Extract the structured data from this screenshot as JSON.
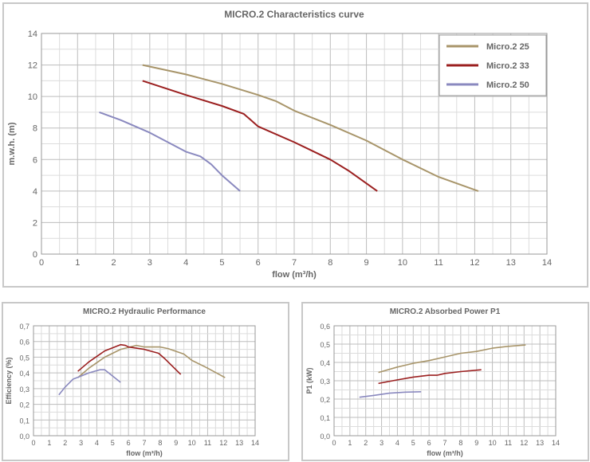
{
  "colors": {
    "Micro.2 25": "#a8956a",
    "Micro.2 33": "#9b1f1f",
    "Micro.2 50": "#8a89bf"
  },
  "chart_data": [
    {
      "type": "line",
      "title": "MICRO.2 Characteristics curve",
      "xlabel": "flow (m³/h)",
      "ylabel": "m.w.h. (m)",
      "xlim": [
        0,
        14
      ],
      "ylim": [
        0,
        14
      ],
      "xticks": [
        "0",
        "1",
        "2",
        "3",
        "4",
        "5",
        "6",
        "7",
        "8",
        "9",
        "10",
        "11",
        "12",
        "13",
        "14"
      ],
      "yticks": [
        "0",
        "2",
        "4",
        "6",
        "8",
        "10",
        "12",
        "14"
      ],
      "legend": "top-right",
      "grid": true,
      "series": [
        {
          "name": "Micro.2 25",
          "x": [
            2.8,
            4,
            5,
            6,
            6.5,
            7,
            8,
            9,
            10,
            11,
            12.1
          ],
          "y": [
            12,
            11.4,
            10.8,
            10.1,
            9.7,
            9.1,
            8.2,
            7.2,
            6,
            4.9,
            4
          ]
        },
        {
          "name": "Micro.2 33",
          "x": [
            2.8,
            4,
            5,
            5.6,
            5.8,
            6,
            7,
            8,
            8.5,
            9.3
          ],
          "y": [
            11,
            10.1,
            9.4,
            8.9,
            8.5,
            8.1,
            7.1,
            6,
            5.3,
            4
          ]
        },
        {
          "name": "Micro.2 50",
          "x": [
            1.6,
            2.2,
            3,
            3.5,
            4,
            4.4,
            4.7,
            5,
            5.5
          ],
          "y": [
            9,
            8.5,
            7.7,
            7.1,
            6.5,
            6.2,
            5.7,
            5,
            4
          ]
        }
      ]
    },
    {
      "type": "line",
      "title": "MICRO.2 Hydraulic Performance",
      "xlabel": "flow (m³/h)",
      "ylabel": "Efficiency (%)",
      "xlim": [
        0,
        14
      ],
      "ylim": [
        0,
        0.7
      ],
      "xticks": [
        "0",
        "1",
        "2",
        "3",
        "4",
        "5",
        "6",
        "7",
        "8",
        "9",
        "10",
        "11",
        "12",
        "13",
        "14"
      ],
      "yticks": [
        "0,0",
        "0,1",
        "0,2",
        "0,3",
        "0,4",
        "0,5",
        "0,6",
        "0,7"
      ],
      "grid": true,
      "series": [
        {
          "name": "Micro.2 25",
          "x": [
            2.8,
            3.5,
            4.5,
            5.5,
            6.5,
            7,
            8,
            8.5,
            9.5,
            10,
            11,
            12.1
          ],
          "y": [
            0.37,
            0.43,
            0.5,
            0.55,
            0.575,
            0.565,
            0.565,
            0.555,
            0.52,
            0.48,
            0.43,
            0.37
          ]
        },
        {
          "name": "Micro.2 33",
          "x": [
            2.8,
            3.5,
            4.5,
            5.5,
            5.8,
            6,
            7,
            7.9,
            8.3,
            9.3
          ],
          "y": [
            0.41,
            0.47,
            0.54,
            0.58,
            0.575,
            0.565,
            0.55,
            0.525,
            0.49,
            0.39
          ]
        },
        {
          "name": "Micro.2 50",
          "x": [
            1.6,
            2,
            2.5,
            3,
            3.5,
            4.2,
            4.5,
            5,
            5.5
          ],
          "y": [
            0.26,
            0.31,
            0.36,
            0.38,
            0.4,
            0.42,
            0.42,
            0.38,
            0.34
          ]
        }
      ]
    },
    {
      "type": "line",
      "title": "MICRO.2 Absorbed Power P1",
      "xlabel": "flow (m³/h)",
      "ylabel": "P1 (kW)",
      "xlim": [
        0,
        14
      ],
      "ylim": [
        0,
        0.6
      ],
      "xticks": [
        "0",
        "1",
        "2",
        "3",
        "4",
        "5",
        "6",
        "7",
        "8",
        "9",
        "10",
        "11",
        "12",
        "13",
        "14"
      ],
      "yticks": [
        "0,0",
        "0,1",
        "0,2",
        "0,3",
        "0,4",
        "0,5",
        "0,6"
      ],
      "grid": true,
      "series": [
        {
          "name": "Micro.2 25",
          "x": [
            2.8,
            4,
            5,
            6,
            7,
            8,
            9,
            10,
            11,
            12.1
          ],
          "y": [
            0.345,
            0.375,
            0.395,
            0.41,
            0.43,
            0.45,
            0.46,
            0.478,
            0.488,
            0.495
          ]
        },
        {
          "name": "Micro.2 33",
          "x": [
            2.8,
            4,
            5,
            6,
            6.5,
            7,
            8,
            9.3
          ],
          "y": [
            0.285,
            0.305,
            0.32,
            0.33,
            0.33,
            0.34,
            0.35,
            0.36
          ]
        },
        {
          "name": "Micro.2 50",
          "x": [
            1.6,
            2.5,
            3.5,
            4.5,
            5.5
          ],
          "y": [
            0.21,
            0.22,
            0.232,
            0.238,
            0.24
          ]
        }
      ]
    }
  ]
}
